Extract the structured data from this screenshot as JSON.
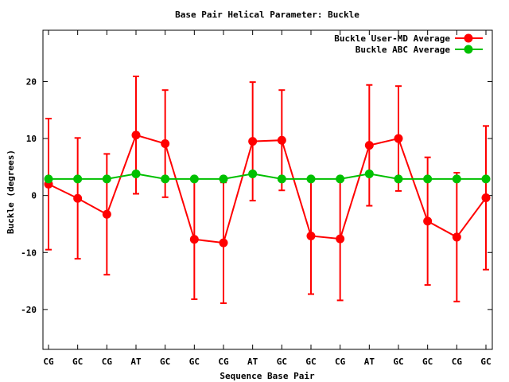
{
  "chart_data": {
    "type": "line",
    "title": "Base Pair Helical Parameter: Buckle",
    "xlabel": "Sequence Base Pair",
    "ylabel": "Buckle (degrees)",
    "categories": [
      "CG",
      "GC",
      "CG",
      "AT",
      "GC",
      "GC",
      "CG",
      "AT",
      "GC",
      "GC",
      "CG",
      "AT",
      "GC",
      "GC",
      "CG",
      "GC"
    ],
    "ylim": [
      -27,
      29
    ],
    "yticks": [
      "20",
      "10",
      "0",
      "-10",
      "-20"
    ],
    "legend_position": "top-right",
    "grid": false,
    "series": [
      {
        "name": "Buckle User-MD Average",
        "color": "#ff0000",
        "values": [
          2.0,
          -0.5,
          -3.3,
          10.6,
          9.1,
          -7.7,
          -8.3,
          9.5,
          9.7,
          -7.1,
          -7.6,
          8.8,
          10.0,
          -4.5,
          -7.3,
          -0.4
        ],
        "error": [
          11.5,
          10.6,
          10.6,
          10.3,
          9.4,
          10.5,
          10.6,
          10.4,
          8.8,
          10.2,
          10.8,
          10.6,
          9.2,
          11.2,
          11.3,
          12.6
        ]
      },
      {
        "name": "Buckle ABC Average",
        "color": "#00c000",
        "values": [
          2.9,
          2.9,
          2.9,
          3.8,
          2.9,
          2.9,
          2.9,
          3.8,
          2.9,
          2.9,
          2.9,
          3.8,
          2.9,
          2.9,
          2.9,
          2.9
        ]
      }
    ]
  }
}
